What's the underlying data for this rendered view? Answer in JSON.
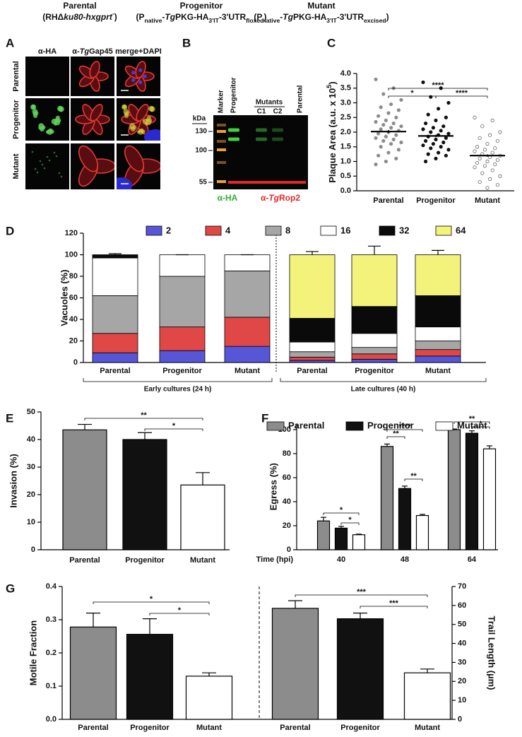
{
  "header": {
    "strains": [
      {
        "name": "Parental",
        "genotype": [
          {
            "text": "(RHΔ"
          },
          {
            "italic": "ku80-hxgprt"
          },
          {
            "sup": "-"
          },
          {
            "text": ")"
          }
        ]
      },
      {
        "name": "Progenitor",
        "genotype": [
          {
            "text": "(P"
          },
          {
            "sub": "native"
          },
          {
            "text": "-"
          },
          {
            "italic": "Tg"
          },
          {
            "text": "PKG-HA"
          },
          {
            "sub": "3'IT"
          },
          {
            "text": "-3'UTR"
          },
          {
            "sub": "floxed"
          },
          {
            "text": ")"
          }
        ]
      },
      {
        "name": "Mutant",
        "genotype": [
          {
            "text": "(P"
          },
          {
            "sub": "native"
          },
          {
            "text": "-"
          },
          {
            "italic": "Tg"
          },
          {
            "text": "PKG-HA"
          },
          {
            "sub": "3'IT"
          },
          {
            "text": "-3'UTR"
          },
          {
            "sub": "excised"
          },
          {
            "text": ")"
          }
        ]
      }
    ]
  },
  "panel_letters": [
    "A",
    "B",
    "C",
    "D",
    "E",
    "F",
    "G"
  ],
  "microscopy": {
    "columns": [
      [
        {
          "text": "α-HA"
        }
      ],
      [
        {
          "text": "α-"
        },
        {
          "italic": "Tg"
        },
        {
          "text": "Gap45"
        }
      ],
      [
        {
          "text": "merge+DAPI"
        }
      ]
    ],
    "rows": [
      "Parental",
      "Progenitor",
      "Mutant"
    ]
  },
  "blot": {
    "kda_label": "kDa",
    "markers": [
      "130",
      "100",
      "55"
    ],
    "lanes": [
      "Marker",
      "Progenitor",
      "Parental"
    ],
    "mutants_label": "Mutants",
    "mutant_lanes": [
      "C1",
      "C2"
    ],
    "probes": [
      [
        {
          "text": "α-HA"
        }
      ],
      [
        {
          "text": "α-"
        },
        {
          "italic": "Tg"
        },
        {
          "text": "Rop2"
        }
      ]
    ]
  },
  "chart_data": [
    {
      "type": "dotplot",
      "ylabel": [
        {
          "text": "Plaque Area (a.u. x 10"
        },
        {
          "sup": "5"
        },
        {
          "text": ")"
        }
      ],
      "categories": [
        "Parental",
        "Progenitor",
        "Mutant"
      ],
      "colors": [
        "#8c8c8c",
        "#111111",
        "#ffffff"
      ],
      "values": [
        [
          3.8,
          3.5,
          3.3,
          3.1,
          2.95,
          2.85,
          2.75,
          2.65,
          2.55,
          2.5,
          2.4,
          2.35,
          2.3,
          2.25,
          2.2,
          2.15,
          2.1,
          2.05,
          2.0,
          1.95,
          1.9,
          1.85,
          1.8,
          1.75,
          1.7,
          1.65,
          1.6,
          1.5,
          1.4,
          1.3,
          1.2,
          1.1,
          1.0,
          0.9
        ],
        [
          3.7,
          3.5,
          3.2,
          3.0,
          2.8,
          2.6,
          2.5,
          2.4,
          2.3,
          2.2,
          2.15,
          2.1,
          2.05,
          2.0,
          1.95,
          1.9,
          1.85,
          1.8,
          1.75,
          1.7,
          1.65,
          1.6,
          1.55,
          1.5,
          1.45,
          1.4,
          1.3,
          1.25,
          1.2,
          1.1,
          1.0
        ],
        [
          2.5,
          2.4,
          2.2,
          2.0,
          1.9,
          1.8,
          1.7,
          1.6,
          1.5,
          1.45,
          1.4,
          1.35,
          1.3,
          1.25,
          1.2,
          1.15,
          1.1,
          1.05,
          1.0,
          0.95,
          0.9,
          0.85,
          0.8,
          0.7,
          0.6,
          0.5,
          0.4,
          0.3,
          0.2,
          0.1
        ]
      ],
      "means": [
        2.02,
        1.87,
        1.2
      ],
      "sems": [
        0.05,
        0.04,
        0.04
      ],
      "ylim": [
        0,
        4
      ],
      "yticks": [
        {
          "value": 0,
          "label": "0.0"
        },
        0.5,
        {
          "value": 1,
          "label": "1.0"
        },
        1.5,
        {
          "value": 2,
          "label": "2.0"
        },
        2.5,
        {
          "value": 3,
          "label": "3.0"
        },
        3.5,
        {
          "value": 4,
          "label": "4.0"
        }
      ],
      "significance": [
        {
          "from": "Parental",
          "to": "Progenitor",
          "label": "*"
        },
        {
          "from": "Parental",
          "to": "Mutant",
          "label": "****"
        },
        {
          "from": "Progenitor",
          "to": "Mutant",
          "label": "****"
        }
      ]
    },
    {
      "type": "stacked_bar",
      "ylabel": "Vacuoles (%)",
      "categories": [
        "Parental",
        "Progenitor",
        "Mutant",
        "Parental",
        "Progenitor",
        "Mutant"
      ],
      "groups": [
        "Early cultures (24 h)",
        "Late cultures (40 h)"
      ],
      "series": [
        {
          "name": "2",
          "color": "#5656d6",
          "values": [
            9,
            11,
            15,
            2,
            3,
            6
          ],
          "errors": [
            1,
            2,
            3,
            1,
            1,
            1
          ]
        },
        {
          "name": "4",
          "color": "#e04848",
          "values": [
            18,
            22,
            27,
            3,
            5,
            6
          ],
          "errors": [
            1,
            3,
            2,
            1,
            1,
            1
          ]
        },
        {
          "name": "8",
          "color": "#a6a6a6",
          "values": [
            35,
            47,
            43,
            5,
            6,
            8
          ],
          "errors": [
            1,
            4,
            3,
            1,
            2,
            1
          ]
        },
        {
          "name": "16",
          "color": "#ffffff",
          "values": [
            35,
            20,
            15,
            9,
            13,
            13
          ],
          "errors": [
            1,
            0,
            0,
            2,
            2,
            2
          ]
        },
        {
          "name": "32",
          "color": "#0a0a0a",
          "values": [
            3,
            0,
            0,
            22,
            25,
            29
          ],
          "errors": [
            1,
            0,
            0,
            2,
            3,
            2
          ]
        },
        {
          "name": "64",
          "color": "#f3f37c",
          "values": [
            0,
            0,
            0,
            59,
            48,
            38
          ],
          "errors": [
            0,
            0,
            0,
            3,
            8,
            4
          ]
        }
      ],
      "ylim": [
        0,
        120
      ],
      "yticks": [
        0,
        20,
        40,
        60,
        80,
        100,
        120
      ]
    },
    {
      "type": "bar",
      "ylabel": "Invasion (%)",
      "categories": [
        "Parental",
        "Progenitor",
        "Mutant"
      ],
      "values": [
        43.5,
        40,
        23.5
      ],
      "errors": [
        2,
        2.5,
        4.5
      ],
      "colors": [
        "#8c8c8c",
        "#111111",
        "#ffffff"
      ],
      "ylim": [
        0,
        50
      ],
      "yticks": [
        0,
        10,
        20,
        30,
        40,
        50
      ],
      "significance": [
        {
          "from": "Parental",
          "to": "Mutant",
          "label": "**"
        },
        {
          "from": "Progenitor",
          "to": "Mutant",
          "label": "*"
        }
      ]
    },
    {
      "type": "grouped_bar",
      "ylabel": "Egress (%)",
      "xlabel": "Time (hpi)",
      "categories": [
        "40",
        "48",
        "64"
      ],
      "series": [
        {
          "name": "Parental",
          "color": "#8c8c8c",
          "values": [
            24,
            86,
            100
          ],
          "errors": [
            3,
            2,
            0.5
          ]
        },
        {
          "name": "Progenitor",
          "color": "#111111",
          "values": [
            18,
            51,
            97
          ],
          "errors": [
            1.5,
            2,
            2
          ]
        },
        {
          "name": "Mutant",
          "color": "#ffffff",
          "values": [
            12.5,
            28.5,
            84
          ],
          "errors": [
            0.5,
            1,
            2.5
          ]
        }
      ],
      "ylim": [
        0,
        105
      ],
      "yticks": [
        0,
        20,
        40,
        60,
        80,
        100
      ],
      "significance": [
        {
          "category": "40",
          "from": "Parental",
          "to": "Mutant",
          "label": "*"
        },
        {
          "category": "40",
          "from": "Progenitor",
          "to": "Mutant",
          "label": "*"
        },
        {
          "category": "48",
          "from": "Parental",
          "to": "Progenitor",
          "label": "**"
        },
        {
          "category": "48",
          "from": "Parental",
          "to": "Mutant",
          "label": "****"
        },
        {
          "category": "48",
          "from": "Progenitor",
          "to": "Mutant",
          "label": "**"
        },
        {
          "category": "64",
          "from": "Parental",
          "to": "Mutant",
          "label": "**"
        },
        {
          "category": "64",
          "from": "Progenitor",
          "to": "Mutant",
          "label": "*"
        }
      ]
    },
    {
      "type": "bar",
      "ylabel": "Motile Fraction",
      "categories": [
        "Parental",
        "Progenitor",
        "Mutant"
      ],
      "values": [
        0.278,
        0.256,
        0.13
      ],
      "errors": [
        0.042,
        0.047,
        0.01
      ],
      "colors": [
        "#8c8c8c",
        "#111111",
        "#ffffff"
      ],
      "ylim": [
        0,
        0.4
      ],
      "yticks": [
        {
          "value": 0,
          "label": "0.0"
        },
        0.1,
        0.2,
        0.3,
        0.4
      ],
      "significance": [
        {
          "from": "Parental",
          "to": "Mutant",
          "label": "*"
        },
        {
          "from": "Progenitor",
          "to": "Mutant",
          "label": "*"
        }
      ]
    },
    {
      "type": "bar",
      "axis": "y2",
      "y2label": "Trail Length (µm)",
      "categories": [
        "Parental",
        "Progenitor",
        "Mutant"
      ],
      "values": [
        58.5,
        53,
        24.5
      ],
      "errors": [
        4,
        3,
        2
      ],
      "colors": [
        "#8c8c8c",
        "#111111",
        "#ffffff"
      ],
      "y2lim": [
        0,
        70
      ],
      "y2ticks": [
        0,
        10,
        20,
        30,
        40,
        50,
        60,
        70
      ],
      "significance": [
        {
          "from": "Parental",
          "to": "Mutant",
          "label": "***"
        },
        {
          "from": "Progenitor",
          "to": "Mutant",
          "label": "***"
        }
      ]
    }
  ]
}
